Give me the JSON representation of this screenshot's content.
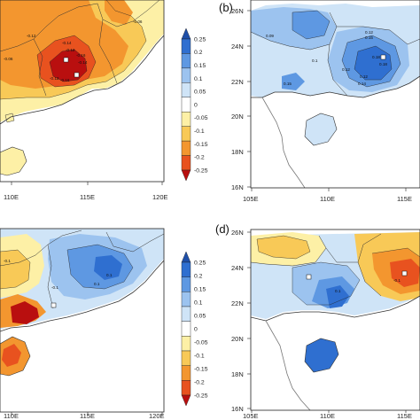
{
  "figure": {
    "panels": [
      {
        "id": "a",
        "label": "",
        "x_ticks": [
          "110E",
          "115E",
          "120E"
        ],
        "y_ticks": [],
        "palette": "warm",
        "contour_labels": [
          "-0.06",
          "-0.06",
          "-0.14",
          "-0.12",
          "-0.16",
          "-0.14",
          "-0.12",
          "-0.16",
          "-0.12"
        ]
      },
      {
        "id": "b",
        "label": "(b)",
        "x_ticks": [
          "105E",
          "110E",
          "115E"
        ],
        "y_ticks": [
          "26N",
          "24N",
          "22N",
          "20N",
          "18N",
          "16N"
        ],
        "palette": "cool",
        "contour_labels": [
          "0.09",
          "0.12",
          "0.15",
          "0.1",
          "0.12",
          "0.12",
          "0.18",
          "0.18",
          "0.15",
          "0.14"
        ]
      },
      {
        "id": "c",
        "label": "",
        "x_ticks": [
          "110E",
          "115E",
          "120E"
        ],
        "y_ticks": [],
        "palette": "mixed",
        "contour_labels": [
          "-0.1",
          "0.1",
          "0.1",
          "-0.1"
        ]
      },
      {
        "id": "d",
        "label": "(d)",
        "x_ticks": [
          "105E",
          "110E",
          "115E"
        ],
        "y_ticks": [
          "26N",
          "24N",
          "22N",
          "20N",
          "18N",
          "16N"
        ],
        "palette": "mixed",
        "contour_labels": [
          "-0.1",
          "0.1"
        ]
      }
    ],
    "colorbars": [
      {
        "id": "cbar-top",
        "labels": [
          "0.25",
          "0.2",
          "0.15",
          "0.1",
          "0.05",
          "0",
          "-0.05",
          "-0.1",
          "-0.15",
          "-0.2",
          "-0.25"
        ]
      },
      {
        "id": "cbar-bottom",
        "labels": [
          "0.25",
          "0.2",
          "0.15",
          "0.1",
          "0.05",
          "0",
          "-0.05",
          "-0.1",
          "-0.15",
          "-0.2",
          "-0.25"
        ]
      }
    ],
    "colors": {
      "levels": [
        "#1f4fa8",
        "#2f6fd0",
        "#5e98e2",
        "#9cc3ef",
        "#cfe4f7",
        "#ffffff",
        "#fdf0a6",
        "#f8c957",
        "#f3962f",
        "#e8521f",
        "#b90f0f"
      ],
      "border": "#333333",
      "coastline": "#666666"
    }
  }
}
